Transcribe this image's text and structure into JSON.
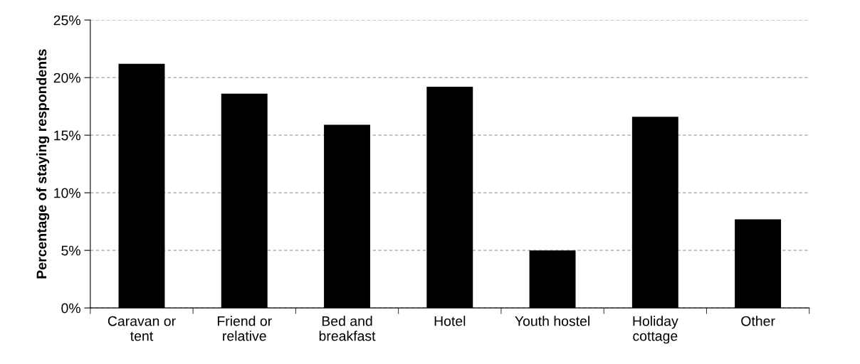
{
  "chart_data": {
    "type": "bar",
    "ylabel": "Percentage of staying respondents",
    "categories": [
      "Caravan or\ntent",
      "Friend or\nrelative",
      "Bed and\nbreakfast",
      "Hotel",
      "Youth hostel",
      "Holiday\ncottage",
      "Other"
    ],
    "values": [
      21.2,
      18.6,
      15.9,
      19.2,
      5.0,
      16.6,
      7.7
    ],
    "color": "#000000",
    "ylim": [
      0,
      25
    ],
    "yticks": [
      {
        "value": 0,
        "label": "0%"
      },
      {
        "value": 5,
        "label": "5%"
      },
      {
        "value": 10,
        "label": "10%"
      },
      {
        "value": 15,
        "label": "15%"
      },
      {
        "value": 20,
        "label": "20%"
      },
      {
        "value": 25,
        "label": "25%"
      }
    ],
    "grid": "y",
    "legend": false
  }
}
